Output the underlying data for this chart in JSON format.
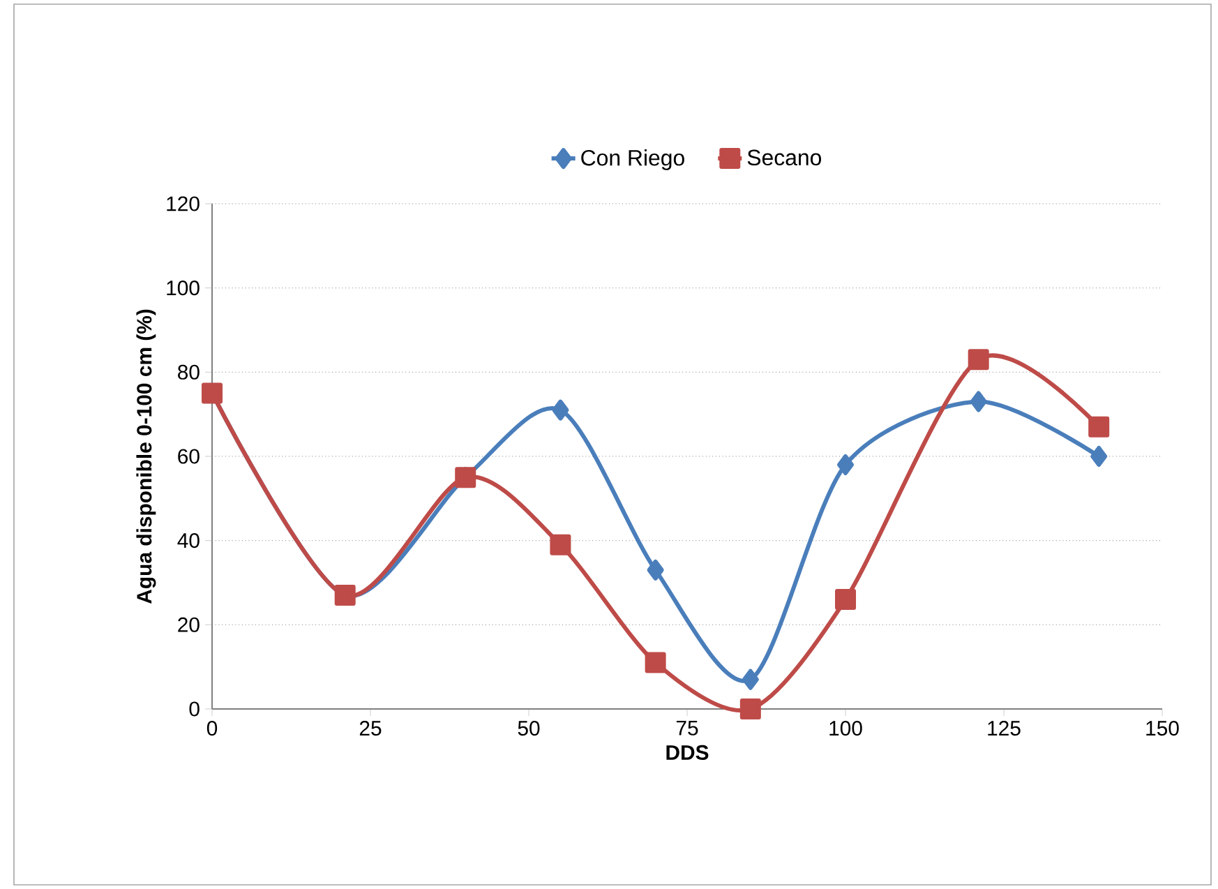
{
  "chart_data": {
    "type": "line",
    "xlabel": "DDS",
    "ylabel": "Agua disponible 0-100 cm (%)",
    "x": [
      0,
      21,
      40,
      55,
      70,
      85,
      100,
      121,
      140
    ],
    "series": [
      {
        "name": "Con Riego",
        "color": "#4a7ebb",
        "marker": "diamond",
        "values": [
          75,
          27,
          55,
          71,
          33,
          7,
          58,
          73,
          60
        ]
      },
      {
        "name": "Secano",
        "color": "#be4b48",
        "marker": "square",
        "values": [
          75,
          27,
          55,
          39,
          11,
          0,
          26,
          83,
          67
        ]
      }
    ],
    "xlim": [
      0,
      150
    ],
    "xticks": [
      0,
      25,
      50,
      75,
      100,
      125,
      150
    ],
    "ylim": [
      0,
      120
    ],
    "yticks": [
      0,
      20,
      40,
      60,
      80,
      100,
      120
    ],
    "grid": "y",
    "legend": "top",
    "line_style": "solid"
  }
}
